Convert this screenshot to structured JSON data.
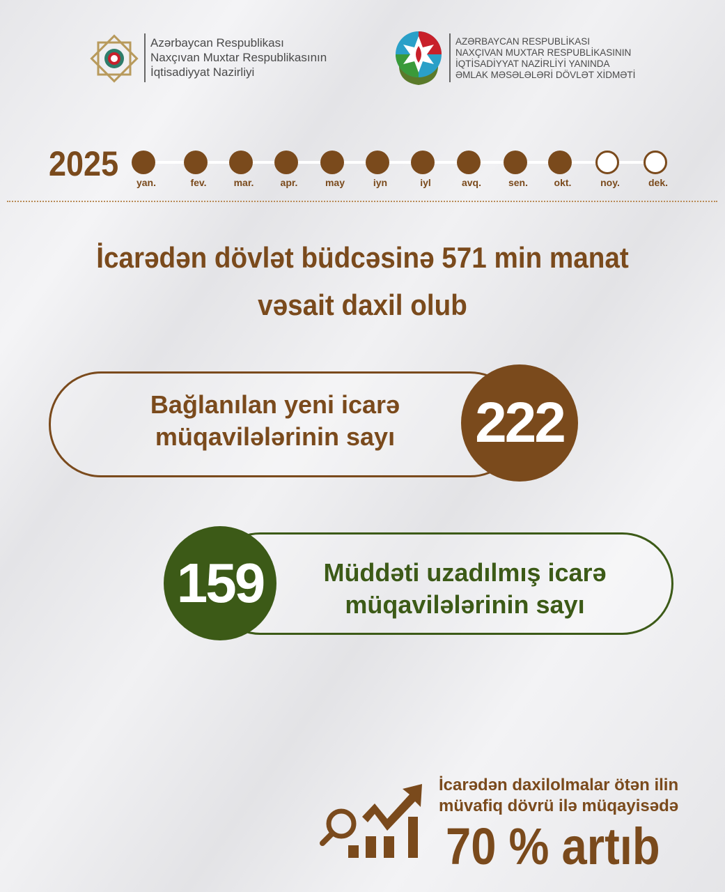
{
  "header": {
    "left_logo": {
      "icon": "ministry-emblem-icon",
      "lines": [
        "Azərbaycan Respublikası",
        "Naxçıvan Muxtar Respublikasının",
        "İqtisadiyyat Nazirliyi"
      ]
    },
    "right_logo": {
      "icon": "azerbaijan-state-emblem-icon",
      "lines": [
        "AZƏRBAYCAN RESPUBLİKASI",
        "NAXÇIVAN MUXTAR RESPUBLİKASININ",
        "İQTİSADİYYAT NAZİRLİYİ YANINDA",
        "ƏMLAK MƏSƏLƏLƏRİ DÖVLƏT XİDMƏTİ"
      ]
    }
  },
  "timeline": {
    "year": "2025",
    "months": [
      {
        "label": "yan.",
        "filled": true
      },
      {
        "label": "fev.",
        "filled": true
      },
      {
        "label": "mar.",
        "filled": true
      },
      {
        "label": "apr.",
        "filled": true
      },
      {
        "label": "may",
        "filled": true
      },
      {
        "label": "iyn",
        "filled": true
      },
      {
        "label": "iyl",
        "filled": true
      },
      {
        "label": "avq.",
        "filled": true
      },
      {
        "label": "sen.",
        "filled": true
      },
      {
        "label": "okt.",
        "filled": true
      },
      {
        "label": "noy.",
        "filled": false
      },
      {
        "label": "dek.",
        "filled": false
      }
    ]
  },
  "headline": {
    "line1": "İcarədən dövlət büdcəsinə 571 min manat",
    "line2": "vəsait daxil olub"
  },
  "stat_new": {
    "line1": "Bağlanılan yeni icarə",
    "line2": "müqavilələrinin sayı",
    "value": "222"
  },
  "stat_extended": {
    "line1": "Müddəti uzadılmış icarə",
    "line2": "müqavilələrinin sayı",
    "value": "159"
  },
  "growth": {
    "icon": "chart-growth-magnifier-icon",
    "line1": "İcarədən daxilolmalar ötən ilin",
    "line2": "müvafiq dövrü ilə müqayisədə",
    "value": "70 % artıb"
  },
  "colors": {
    "brown": "#7a4a1c",
    "green": "#3c5a17"
  }
}
